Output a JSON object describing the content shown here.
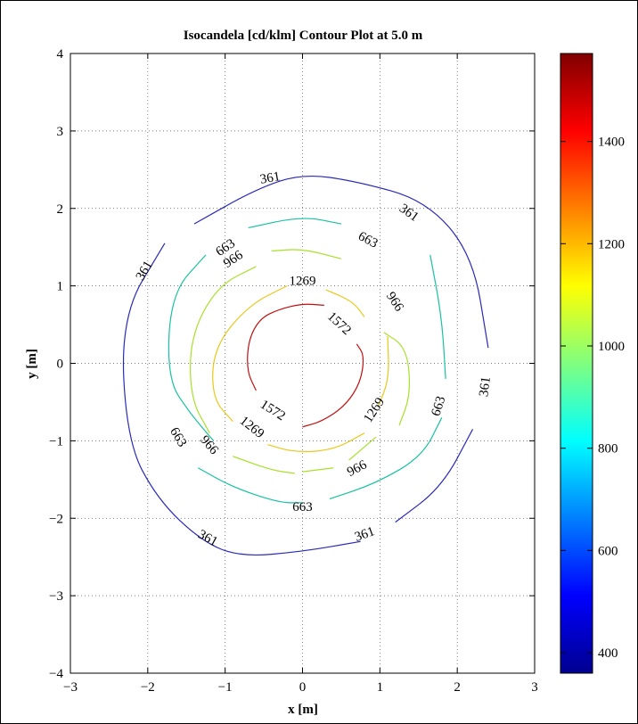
{
  "chart_data": {
    "type": "contour",
    "title": "Isocandela [cd/klm] Contour Plot at 5.0 m",
    "xlabel": "x [m]",
    "ylabel": "y [m]",
    "xlim": [
      -3,
      3
    ],
    "ylim": [
      -4,
      4
    ],
    "x_ticks": [
      "−3",
      "−2",
      "−1",
      "0",
      "1",
      "2",
      "3"
    ],
    "y_ticks": [
      "−4",
      "−3",
      "−2",
      "−1",
      "0",
      "1",
      "2",
      "3",
      "4"
    ],
    "grid": true,
    "colorbar": {
      "range": [
        360,
        1572
      ],
      "ticks": [
        "400",
        "600",
        "800",
        "1000",
        "1200",
        "1400"
      ],
      "colormap": "jet"
    },
    "series": [
      {
        "level": 361,
        "color": "#2a2ab8",
        "arcs": [
          {
            "x": [
              -1.78,
              -2.35,
              -2.27,
              -1.88,
              -1.3,
              -0.8,
              0.0,
              0.75
            ],
            "y": [
              1.55,
              0.6,
              -1.0,
              -1.75,
              -2.3,
              -2.5,
              -2.43,
              -2.3
            ]
          },
          {
            "x": [
              -1.4,
              -0.6,
              0.0,
              0.7,
              1.6,
              2.2,
              2.4
            ],
            "y": [
              1.8,
              2.25,
              2.45,
              2.35,
              2.1,
              1.4,
              0.2
            ]
          },
          {
            "x": [
              1.2,
              1.8,
              2.2
            ],
            "y": [
              -2.05,
              -1.6,
              -0.85
            ]
          }
        ],
        "labels": [
          {
            "x": -0.42,
            "y": 2.4
          },
          {
            "x": 1.38,
            "y": 1.95
          },
          {
            "x": -2.05,
            "y": 1.2
          },
          {
            "x": 2.35,
            "y": -0.3
          },
          {
            "x": -1.22,
            "y": -2.25
          },
          {
            "x": 0.8,
            "y": -2.2
          }
        ]
      },
      {
        "level": 663,
        "color": "#18c2a0",
        "arcs": [
          {
            "x": -1.0,
            "y": -1.0
          },
          {
            "x": [
              -1.25,
              -1.7,
              -1.75,
              -1.45,
              -1.15
            ],
            "y": [
              1.4,
              0.9,
              -0.2,
              -0.65,
              -1.0
            ]
          },
          {
            "x": [
              -1.35,
              -0.9,
              -0.3,
              0.0
            ],
            "y": [
              -1.35,
              -1.6,
              -1.8,
              -1.8
            ]
          },
          {
            "x": [
              0.35,
              0.95,
              1.55,
              1.8
            ],
            "y": [
              -1.75,
              -1.55,
              -1.2,
              -0.7
            ]
          },
          {
            "x": [
              1.85,
              1.8,
              1.65
            ],
            "y": [
              -0.2,
              0.6,
              1.4
            ]
          },
          {
            "x": [
              -0.7,
              0.0,
              0.5
            ],
            "y": [
              1.75,
              1.9,
              1.8
            ]
          }
        ],
        "labels": [
          {
            "x": -1.0,
            "y": 1.5
          },
          {
            "x": 0.85,
            "y": 1.6
          },
          {
            "x": 1.75,
            "y": -0.55
          },
          {
            "x": -1.6,
            "y": -0.95
          },
          {
            "x": 0.0,
            "y": -1.85
          }
        ]
      },
      {
        "level": 966,
        "color": "#a8e02a",
        "arcs": [
          {
            "x": [
              -0.6,
              -1.1,
              -1.45,
              -1.45,
              -1.2
            ],
            "y": [
              1.25,
              1.0,
              0.35,
              -0.45,
              -0.9
            ]
          },
          {
            "x": [
              -0.4,
              0.0,
              0.5
            ],
            "y": [
              1.45,
              1.48,
              1.35
            ]
          },
          {
            "x": [
              1.05,
              1.35,
              1.4,
              1.25
            ],
            "y": [
              0.4,
              0.2,
              -0.4,
              -0.8
            ]
          },
          {
            "x": [
              0.0,
              0.4
            ],
            "y": [
              -1.4,
              -1.35
            ]
          },
          {
            "x": [
              0.95,
              0.6
            ],
            "y": [
              -0.95,
              -1.25
            ]
          },
          {
            "x": [
              -0.9,
              -0.4,
              -0.1
            ],
            "y": [
              -1.2,
              -1.38,
              -1.42
            ]
          }
        ],
        "labels": [
          {
            "x": -0.9,
            "y": 1.35
          },
          {
            "x": 1.2,
            "y": 0.8
          },
          {
            "x": -1.2,
            "y": -1.05
          },
          {
            "x": 0.7,
            "y": -1.35
          }
        ]
      },
      {
        "level": 1269,
        "color": "#e8c81a",
        "arcs": [
          {
            "x": [
              -0.2,
              -0.7,
              -1.15,
              -1.17,
              -0.9
            ],
            "y": [
              1.0,
              0.75,
              0.2,
              -0.45,
              -0.75
            ]
          },
          {
            "x": [
              0.3,
              0.65,
              0.8
            ],
            "y": [
              0.95,
              0.8,
              0.6
            ]
          },
          {
            "x": [
              1.1,
              1.12,
              0.98
            ],
            "y": [
              0.35,
              -0.2,
              -0.55
            ]
          },
          {
            "x": [
              -0.45,
              -0.1,
              0.4,
              0.8
            ],
            "y": [
              -1.05,
              -1.15,
              -1.12,
              -0.9
            ]
          }
        ],
        "labels": [
          {
            "x": 0.0,
            "y": 1.07
          },
          {
            "x": 0.92,
            "y": -0.6
          },
          {
            "x": -0.65,
            "y": -0.82
          }
        ]
      },
      {
        "level": 1572,
        "color": "#c01010",
        "arcs": [
          {
            "x": [
              0.28,
              0.0,
              -0.3,
              -0.55,
              -0.7,
              -0.72,
              -0.6
            ],
            "y": [
              0.75,
              0.77,
              0.7,
              0.58,
              0.3,
              -0.1,
              -0.35
            ]
          },
          {
            "x": [
              0.7,
              0.8,
              0.75,
              0.55,
              0.25,
              0.0
            ],
            "y": [
              0.25,
              0.1,
              -0.25,
              -0.55,
              -0.75,
              -0.82
            ]
          }
        ],
        "labels": [
          {
            "x": 0.48,
            "y": 0.52
          },
          {
            "x": -0.38,
            "y": -0.6
          }
        ]
      }
    ]
  }
}
